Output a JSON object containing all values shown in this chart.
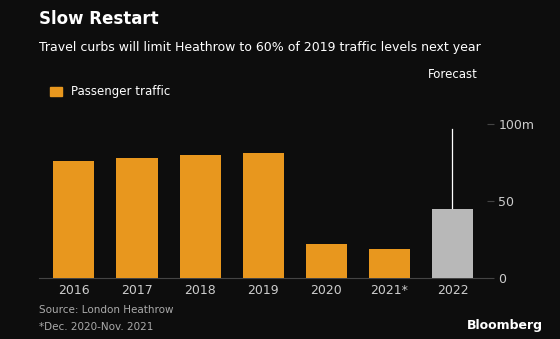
{
  "title": "Slow Restart",
  "subtitle": "Travel curbs will limit Heathrow to 60% of 2019 traffic levels next year",
  "legend_label": "Passenger traffic",
  "categories": [
    "2016",
    "2017",
    "2018",
    "2019",
    "2020",
    "2021*",
    "2022"
  ],
  "values": [
    76,
    78,
    80,
    81,
    22,
    19,
    45
  ],
  "bar_colors": [
    "#E8971E",
    "#E8971E",
    "#E8971E",
    "#E8971E",
    "#E8971E",
    "#E8971E",
    "#B8B8B8"
  ],
  "background_color": "#0D0D0D",
  "text_color": "#FFFFFF",
  "axis_color": "#444444",
  "title_fontsize": 12,
  "subtitle_fontsize": 9,
  "legend_fontsize": 8.5,
  "ylabel_right": "100m",
  "yticks": [
    0,
    50,
    100
  ],
  "ylim": [
    0,
    110
  ],
  "forecast_label": "Forecast",
  "source_line1": "Source: London Heathrow",
  "source_line2": "*Dec. 2020-Nov. 2021",
  "bloomberg_label": "Bloomberg",
  "legend_color": "#E8971E",
  "forecast_bar_index": 6,
  "tick_label_color": "#CCCCCC",
  "note_color": "#AAAAAA",
  "xtick_fontsize": 9
}
